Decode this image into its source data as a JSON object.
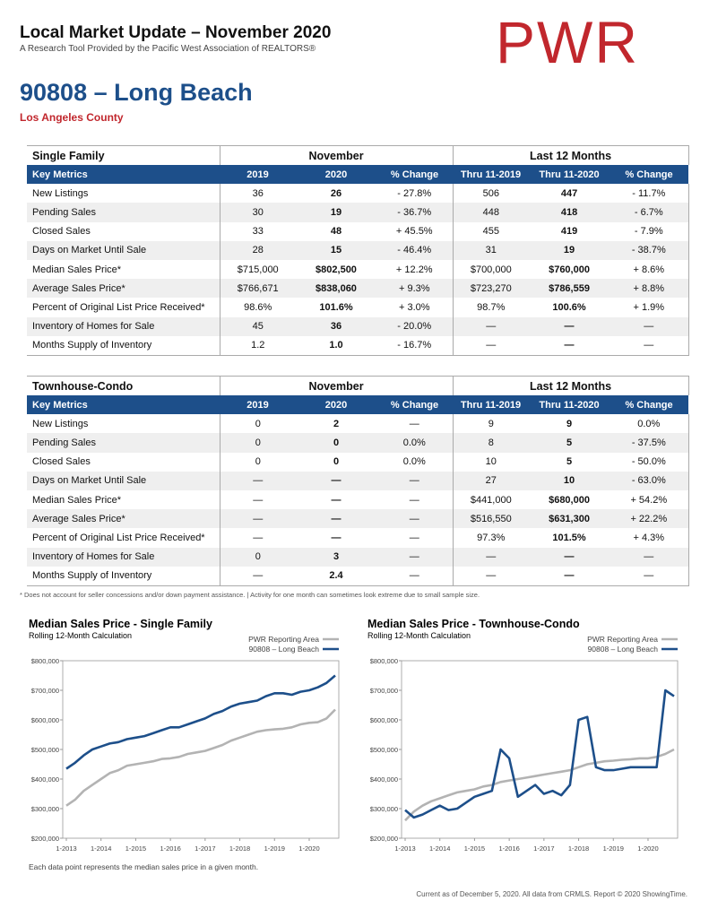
{
  "header": {
    "title": "Local Market Update – November 2020",
    "subtitle": "A Research Tool Provided by the Pacific West Association of REALTORS®",
    "logo": "PWR",
    "area": "90808 – Long Beach",
    "county": "Los Angeles County"
  },
  "tables": [
    {
      "name": "Single Family",
      "groups": [
        "November",
        "Last 12 Months"
      ],
      "columns": [
        "Key Metrics",
        "2019",
        "2020",
        "% Change",
        "Thru 11-2019",
        "Thru 11-2020",
        "% Change"
      ],
      "rows": [
        [
          "New Listings",
          "36",
          "26",
          "- 27.8%",
          "506",
          "447",
          "- 11.7%"
        ],
        [
          "Pending Sales",
          "30",
          "19",
          "- 36.7%",
          "448",
          "418",
          "- 6.7%"
        ],
        [
          "Closed Sales",
          "33",
          "48",
          "+ 45.5%",
          "455",
          "419",
          "- 7.9%"
        ],
        [
          "Days on Market Until Sale",
          "28",
          "15",
          "- 46.4%",
          "31",
          "19",
          "- 38.7%"
        ],
        [
          "Median Sales Price*",
          "$715,000",
          "$802,500",
          "+ 12.2%",
          "$700,000",
          "$760,000",
          "+ 8.6%"
        ],
        [
          "Average Sales Price*",
          "$766,671",
          "$838,060",
          "+ 9.3%",
          "$723,270",
          "$786,559",
          "+ 8.8%"
        ],
        [
          "Percent of Original List Price Received*",
          "98.6%",
          "101.6%",
          "+ 3.0%",
          "98.7%",
          "100.6%",
          "+ 1.9%"
        ],
        [
          "Inventory of Homes for Sale",
          "45",
          "36",
          "- 20.0%",
          "—",
          "—",
          "—"
        ],
        [
          "Months Supply of Inventory",
          "1.2",
          "1.0",
          "- 16.7%",
          "—",
          "—",
          "—"
        ]
      ]
    },
    {
      "name": "Townhouse-Condo",
      "groups": [
        "November",
        "Last 12 Months"
      ],
      "columns": [
        "Key Metrics",
        "2019",
        "2020",
        "% Change",
        "Thru 11-2019",
        "Thru 11-2020",
        "% Change"
      ],
      "rows": [
        [
          "New Listings",
          "0",
          "2",
          "—",
          "9",
          "9",
          "0.0%"
        ],
        [
          "Pending Sales",
          "0",
          "0",
          "0.0%",
          "8",
          "5",
          "- 37.5%"
        ],
        [
          "Closed Sales",
          "0",
          "0",
          "0.0%",
          "10",
          "5",
          "- 50.0%"
        ],
        [
          "Days on Market Until Sale",
          "—",
          "—",
          "—",
          "27",
          "10",
          "- 63.0%"
        ],
        [
          "Median Sales Price*",
          "—",
          "—",
          "—",
          "$441,000",
          "$680,000",
          "+ 54.2%"
        ],
        [
          "Average Sales Price*",
          "—",
          "—",
          "—",
          "$516,550",
          "$631,300",
          "+ 22.2%"
        ],
        [
          "Percent of Original List Price Received*",
          "—",
          "—",
          "—",
          "97.3%",
          "101.5%",
          "+ 4.3%"
        ],
        [
          "Inventory of Homes for Sale",
          "0",
          "3",
          "—",
          "—",
          "—",
          "—"
        ],
        [
          "Months Supply of Inventory",
          "—",
          "2.4",
          "—",
          "—",
          "—",
          "—"
        ]
      ]
    }
  ],
  "footnote": "* Does not account for seller concessions and/or down payment assistance. | Activity for one month can sometimes look extreme due to small sample size.",
  "chart_data": [
    {
      "type": "line",
      "title": "Median Sales Price - Single Family",
      "subtitle": "Rolling 12-Month Calculation",
      "categories": [
        "1-2013",
        null,
        null,
        null,
        "1-2014",
        null,
        null,
        null,
        "1-2015",
        null,
        null,
        null,
        "1-2016",
        null,
        null,
        null,
        "1-2017",
        null,
        null,
        null,
        "1-2018",
        null,
        null,
        null,
        "1-2019",
        null,
        null,
        null,
        "1-2020",
        null,
        null,
        null
      ],
      "ylim": [
        200000,
        800000
      ],
      "yticks": [
        {
          "value": 200000,
          "label": "$200,000"
        },
        {
          "value": 300000,
          "label": "$300,000"
        },
        {
          "value": 400000,
          "label": "$400,000"
        },
        {
          "value": 500000,
          "label": "$500,000"
        },
        {
          "value": 600000,
          "label": "$600,000"
        },
        {
          "value": 700000,
          "label": "$700,000"
        },
        {
          "value": 800000,
          "label": "$800,000"
        }
      ],
      "series": [
        {
          "name": "PWR Reporting Area",
          "color": "#b3b3b3",
          "values": [
            310000,
            330000,
            360000,
            380000,
            400000,
            420000,
            430000,
            445000,
            450000,
            455000,
            460000,
            468000,
            470000,
            475000,
            485000,
            490000,
            495000,
            505000,
            515000,
            530000,
            540000,
            550000,
            560000,
            565000,
            568000,
            570000,
            575000,
            585000,
            590000,
            592000,
            605000,
            635000
          ]
        },
        {
          "name": "90808 – Long Beach",
          "color": "#1d4f8a",
          "values": [
            435000,
            455000,
            480000,
            500000,
            510000,
            520000,
            525000,
            535000,
            540000,
            545000,
            555000,
            565000,
            575000,
            575000,
            585000,
            595000,
            605000,
            620000,
            630000,
            645000,
            655000,
            660000,
            665000,
            680000,
            690000,
            690000,
            685000,
            695000,
            700000,
            710000,
            725000,
            750000
          ]
        }
      ]
    },
    {
      "type": "line",
      "title": "Median Sales Price - Townhouse-Condo",
      "subtitle": "Rolling 12-Month Calculation",
      "categories": [
        "1-2013",
        null,
        null,
        null,
        "1-2014",
        null,
        null,
        null,
        "1-2015",
        null,
        null,
        null,
        "1-2016",
        null,
        null,
        null,
        "1-2017",
        null,
        null,
        null,
        "1-2018",
        null,
        null,
        null,
        "1-2019",
        null,
        null,
        null,
        "1-2020",
        null,
        null,
        null
      ],
      "ylim": [
        200000,
        800000
      ],
      "yticks": [
        {
          "value": 200000,
          "label": "$200,000"
        },
        {
          "value": 300000,
          "label": "$300,000"
        },
        {
          "value": 400000,
          "label": "$400,000"
        },
        {
          "value": 500000,
          "label": "$500,000"
        },
        {
          "value": 600000,
          "label": "$600,000"
        },
        {
          "value": 700000,
          "label": "$700,000"
        },
        {
          "value": 800000,
          "label": "$800,000"
        }
      ],
      "series": [
        {
          "name": "PWR Reporting Area",
          "color": "#b3b3b3",
          "values": [
            260000,
            290000,
            310000,
            325000,
            335000,
            345000,
            355000,
            360000,
            365000,
            375000,
            380000,
            390000,
            395000,
            400000,
            405000,
            410000,
            415000,
            420000,
            425000,
            430000,
            440000,
            450000,
            455000,
            460000,
            462000,
            465000,
            467000,
            470000,
            470000,
            475000,
            485000,
            500000
          ]
        },
        {
          "name": "90808 – Long Beach",
          "color": "#1d4f8a",
          "values": [
            295000,
            270000,
            280000,
            295000,
            310000,
            295000,
            300000,
            320000,
            340000,
            350000,
            360000,
            500000,
            470000,
            340000,
            360000,
            380000,
            350000,
            360000,
            345000,
            380000,
            600000,
            610000,
            440000,
            430000,
            430000,
            435000,
            440000,
            440000,
            440000,
            440000,
            700000,
            680000
          ]
        }
      ]
    }
  ],
  "chart_note": "Each data point represents the median sales price in a given month.",
  "footer": "Current as of December 5, 2020. All data from CRMLS. Report © 2020 ShowingTime."
}
